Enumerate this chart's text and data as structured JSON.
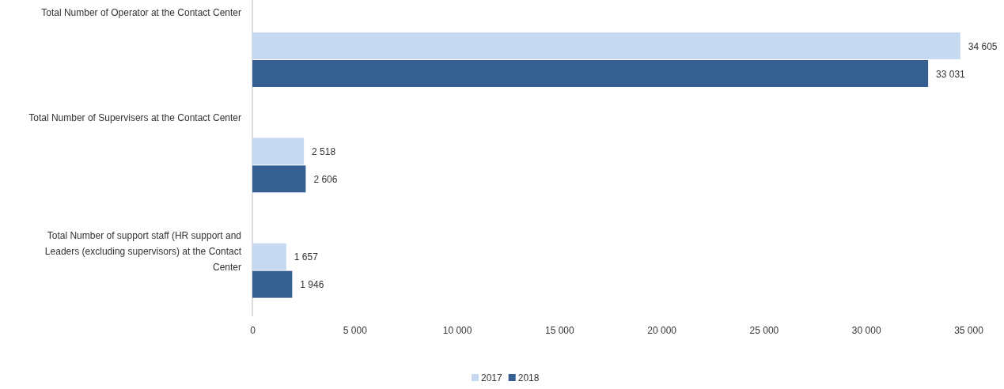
{
  "chart_data": {
    "type": "bar",
    "orientation": "horizontal",
    "categories": [
      "Total Number of Operator at the Contact Center",
      "Total Number of Supervisers at the Contact Center",
      "Total Number of support staff (HR support and Leaders (excluding supervisors) at the Contact Center"
    ],
    "series": [
      {
        "name": "2017",
        "color": "#c6d9f0",
        "values": [
          34605,
          2518,
          1657
        ],
        "value_labels": [
          "34 605",
          "2 518",
          "1 657"
        ]
      },
      {
        "name": "2018",
        "color": "#366092",
        "values": [
          33031,
          2606,
          1946
        ],
        "value_labels": [
          "33 031",
          "2 606",
          "1 946"
        ]
      }
    ],
    "xlim": [
      0,
      35000
    ],
    "xticks": [
      0,
      {
        "value": 5000,
        "label": "5 000"
      },
      {
        "value": 10000,
        "label": "10 000"
      },
      {
        "value": 15000,
        "label": "15 000"
      },
      {
        "value": 20000,
        "label": "20 000"
      },
      {
        "value": 25000,
        "label": "25 000"
      },
      {
        "value": 30000,
        "label": "30 000"
      },
      {
        "value": 35000,
        "label": "35 000"
      }
    ],
    "grid": false,
    "legend": "bottom"
  }
}
